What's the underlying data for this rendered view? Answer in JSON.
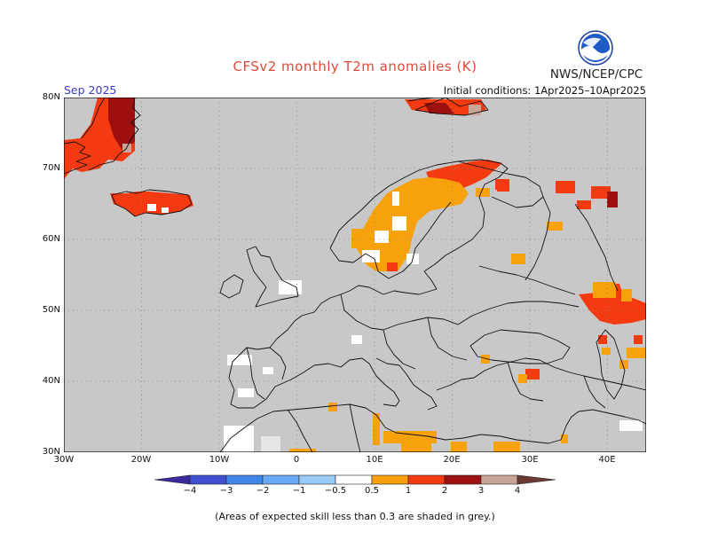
{
  "title": "CFSv2 monthly T2m anomalies (K)",
  "agency": "NWS/NCEP/CPC",
  "valid_month": "Sep 2025",
  "initial_conditions": "Initial conditions: 1Apr2025–10Apr2025",
  "footnote": "(Areas of expected skill less than 0.3 are shaded in grey.)",
  "map": {
    "lon_labels": [
      "30W",
      "20W",
      "10W",
      "0",
      "10E",
      "20E",
      "30E",
      "40E"
    ],
    "lat_labels": [
      "80N",
      "70N",
      "60N",
      "50N",
      "40N",
      "30N"
    ],
    "lon_values": [
      -30,
      -20,
      -10,
      0,
      10,
      20,
      30,
      40
    ],
    "lat_values": [
      80,
      70,
      60,
      50,
      40,
      30
    ],
    "extent": {
      "lon": [
        -30,
        45
      ],
      "lat": [
        30,
        80
      ]
    },
    "grid": "dotted",
    "background_color": "#c8c8c8"
  },
  "colorbar": {
    "labels": [
      "−4",
      "−3",
      "−2",
      "−1",
      "−0.5",
      "0.5",
      "1",
      "2",
      "3",
      "4"
    ],
    "colors": [
      "#3b2a9e",
      "#3f4fd0",
      "#3f86e8",
      "#6aa9f3",
      "#9ccaf8",
      "#ffffff",
      "#f7a10d",
      "#f43a10",
      "#9e0f10",
      "#c9a597",
      "#6b3b33"
    ]
  }
}
